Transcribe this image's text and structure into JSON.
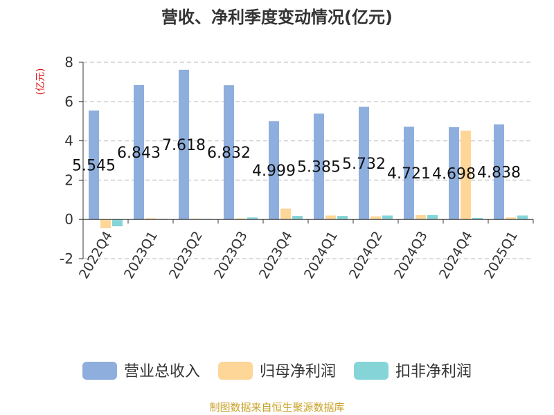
{
  "colors": {
    "revenue": "#8eaedd",
    "parent_net_profit": "#fdd698",
    "deducted_net_profit": "#85d5d8",
    "ylabel": "#e01010",
    "title": "#333333",
    "source": "#c9a227",
    "axis": "#333333",
    "grid": "#c8c8c8",
    "label": "#111111"
  },
  "chart_data": {
    "type": "bar",
    "title": "营收、净利季度变动情况(亿元)",
    "ylabel": "(亿元)",
    "xlabel": "",
    "ylim": [
      -2,
      8
    ],
    "yticks": [
      -2,
      0,
      2,
      4,
      6,
      8
    ],
    "grid": true,
    "legend_position": "bottom",
    "categories": [
      "2022Q4",
      "2023Q1",
      "2023Q2",
      "2023Q3",
      "2023Q4",
      "2024Q1",
      "2024Q2",
      "2024Q3",
      "2024Q4",
      "2025Q1"
    ],
    "series": [
      {
        "name": "营业总收入",
        "values": [
          5.545,
          6.843,
          7.618,
          6.832,
          4.999,
          5.385,
          5.732,
          4.721,
          4.698,
          4.838
        ]
      },
      {
        "name": "归母净利润",
        "values": [
          -0.45,
          0.06,
          0.04,
          0.05,
          0.55,
          0.2,
          0.15,
          0.22,
          4.52,
          0.1
        ]
      },
      {
        "name": "扣非净利润",
        "values": [
          -0.35,
          0.02,
          0.02,
          0.1,
          0.18,
          0.18,
          0.2,
          0.22,
          0.08,
          0.2
        ]
      }
    ],
    "data_labels": [
      "5.545",
      "6.843",
      "7.618",
      "6.832",
      "4.999",
      "5.385",
      "5.732",
      "4.721",
      "4.698",
      "4.838"
    ],
    "source": "制图数据来自恒生聚源数据库"
  }
}
